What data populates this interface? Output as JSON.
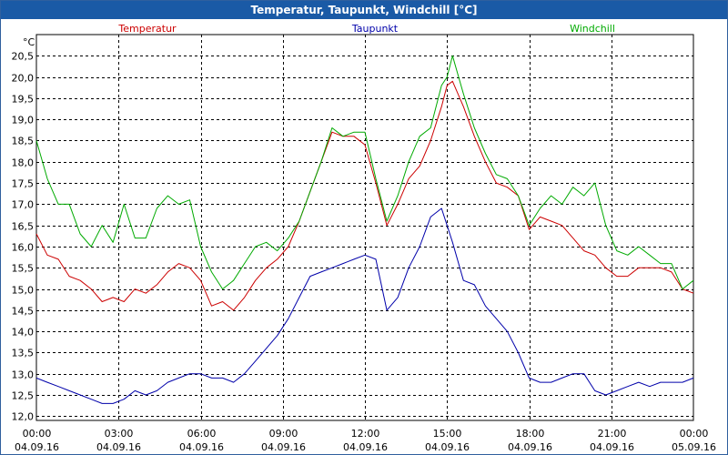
{
  "window": {
    "title": "Temperatur, Taupunkt, Windchill [°C]"
  },
  "chart_data": {
    "type": "line",
    "title": "Temperatur, Taupunkt, Windchill [°C]",
    "ylabel": "°C",
    "xlabel": "",
    "ylim": [
      11.9,
      21.0
    ],
    "xlim": [
      0,
      24
    ],
    "grid": true,
    "legend_position": "top",
    "y_ticks": [
      "12,0",
      "12,5",
      "13,0",
      "13,5",
      "14,0",
      "14,5",
      "15,0",
      "15,5",
      "16,0",
      "16,5",
      "17,0",
      "17,5",
      "18,0",
      "18,5",
      "19,0",
      "19,5",
      "20,0",
      "20,5"
    ],
    "x_ticks": [
      {
        "time": "00:00",
        "date": "04.09.16"
      },
      {
        "time": "03:00",
        "date": "04.09.16"
      },
      {
        "time": "06:00",
        "date": "04.09.16"
      },
      {
        "time": "09:00",
        "date": "04.09.16"
      },
      {
        "time": "12:00",
        "date": "04.09.16"
      },
      {
        "time": "15:00",
        "date": "04.09.16"
      },
      {
        "time": "18:00",
        "date": "04.09.16"
      },
      {
        "time": "21:00",
        "date": "04.09.16"
      },
      {
        "time": "00:00",
        "date": "05.09.16"
      }
    ],
    "series": [
      {
        "name": "Temperatur",
        "color": "#cc0000",
        "x": [
          0,
          0.4,
          0.8,
          1.2,
          1.6,
          2.0,
          2.4,
          2.8,
          3.2,
          3.6,
          4.0,
          4.4,
          4.8,
          5.2,
          5.6,
          6.0,
          6.4,
          6.8,
          7.2,
          7.6,
          8.0,
          8.4,
          8.8,
          9.2,
          9.6,
          10.0,
          10.4,
          10.8,
          11.2,
          11.6,
          12.0,
          12.4,
          12.8,
          13.2,
          13.6,
          14.0,
          14.4,
          14.8,
          15.0,
          15.2,
          15.6,
          16.0,
          16.4,
          16.8,
          17.2,
          17.6,
          18.0,
          18.4,
          18.8,
          19.2,
          19.6,
          20.0,
          20.4,
          20.8,
          21.2,
          21.6,
          22.0,
          22.4,
          22.8,
          23.2,
          23.6,
          24.0
        ],
        "values": [
          16.3,
          15.8,
          15.7,
          15.3,
          15.2,
          15.0,
          14.7,
          14.8,
          14.7,
          15.0,
          14.9,
          15.1,
          15.4,
          15.6,
          15.5,
          15.2,
          14.6,
          14.7,
          14.5,
          14.8,
          15.2,
          15.5,
          15.7,
          16.0,
          16.6,
          17.3,
          18.0,
          18.7,
          18.6,
          18.6,
          18.4,
          17.5,
          16.5,
          17.0,
          17.6,
          17.9,
          18.5,
          19.3,
          19.8,
          19.9,
          19.3,
          18.6,
          18.0,
          17.5,
          17.4,
          17.2,
          16.4,
          16.7,
          16.6,
          16.5,
          16.2,
          15.9,
          15.8,
          15.5,
          15.3,
          15.3,
          15.5,
          15.5,
          15.5,
          15.4,
          15.0,
          14.9
        ]
      },
      {
        "name": "Taupunkt",
        "color": "#0000aa",
        "x": [
          0,
          0.4,
          0.8,
          1.2,
          1.6,
          2.0,
          2.4,
          2.8,
          3.2,
          3.6,
          4.0,
          4.4,
          4.8,
          5.2,
          5.6,
          6.0,
          6.4,
          6.8,
          7.2,
          7.6,
          8.0,
          8.4,
          8.8,
          9.2,
          9.6,
          10.0,
          10.4,
          10.8,
          11.2,
          11.6,
          12.0,
          12.4,
          12.8,
          13.2,
          13.6,
          14.0,
          14.4,
          14.8,
          15.0,
          15.2,
          15.6,
          16.0,
          16.4,
          16.8,
          17.2,
          17.6,
          18.0,
          18.4,
          18.8,
          19.2,
          19.6,
          20.0,
          20.4,
          20.8,
          21.2,
          21.6,
          22.0,
          22.4,
          22.8,
          23.2,
          23.6,
          24.0
        ],
        "values": [
          12.9,
          12.8,
          12.7,
          12.6,
          12.5,
          12.4,
          12.3,
          12.3,
          12.4,
          12.6,
          12.5,
          12.6,
          12.8,
          12.9,
          13.0,
          13.0,
          12.9,
          12.9,
          12.8,
          13.0,
          13.3,
          13.6,
          13.9,
          14.3,
          14.8,
          15.3,
          15.4,
          15.5,
          15.6,
          15.7,
          15.8,
          15.7,
          14.5,
          14.8,
          15.5,
          16.0,
          16.7,
          16.9,
          16.5,
          16.1,
          15.2,
          15.1,
          14.6,
          14.3,
          14.0,
          13.5,
          12.9,
          12.8,
          12.8,
          12.9,
          13.0,
          13.0,
          12.6,
          12.5,
          12.6,
          12.7,
          12.8,
          12.7,
          12.8,
          12.8,
          12.8,
          12.9
        ]
      },
      {
        "name": "Windchill",
        "color": "#00aa00",
        "x": [
          0,
          0.4,
          0.8,
          1.2,
          1.6,
          2.0,
          2.4,
          2.8,
          3.2,
          3.6,
          4.0,
          4.4,
          4.8,
          5.2,
          5.6,
          6.0,
          6.4,
          6.8,
          7.2,
          7.6,
          8.0,
          8.4,
          8.8,
          9.2,
          9.6,
          10.0,
          10.4,
          10.8,
          11.2,
          11.6,
          12.0,
          12.4,
          12.8,
          13.2,
          13.6,
          14.0,
          14.4,
          14.8,
          15.0,
          15.2,
          15.6,
          16.0,
          16.4,
          16.8,
          17.2,
          17.6,
          18.0,
          18.4,
          18.8,
          19.2,
          19.6,
          20.0,
          20.4,
          20.8,
          21.2,
          21.6,
          22.0,
          22.4,
          22.8,
          23.2,
          23.6,
          24.0
        ],
        "values": [
          18.5,
          17.6,
          17.0,
          17.0,
          16.3,
          16.0,
          16.5,
          16.1,
          17.0,
          16.2,
          16.2,
          16.9,
          17.2,
          17.0,
          17.1,
          16.0,
          15.4,
          15.0,
          15.2,
          15.6,
          16.0,
          16.1,
          15.9,
          16.2,
          16.6,
          17.3,
          18.0,
          18.8,
          18.6,
          18.7,
          18.7,
          17.6,
          16.6,
          17.2,
          18.0,
          18.6,
          18.8,
          19.8,
          20.0,
          20.5,
          19.6,
          18.8,
          18.2,
          17.7,
          17.6,
          17.2,
          16.5,
          16.9,
          17.2,
          17.0,
          17.4,
          17.2,
          17.5,
          16.5,
          15.9,
          15.8,
          16.0,
          15.8,
          15.6,
          15.6,
          15.0,
          15.2
        ]
      }
    ]
  }
}
